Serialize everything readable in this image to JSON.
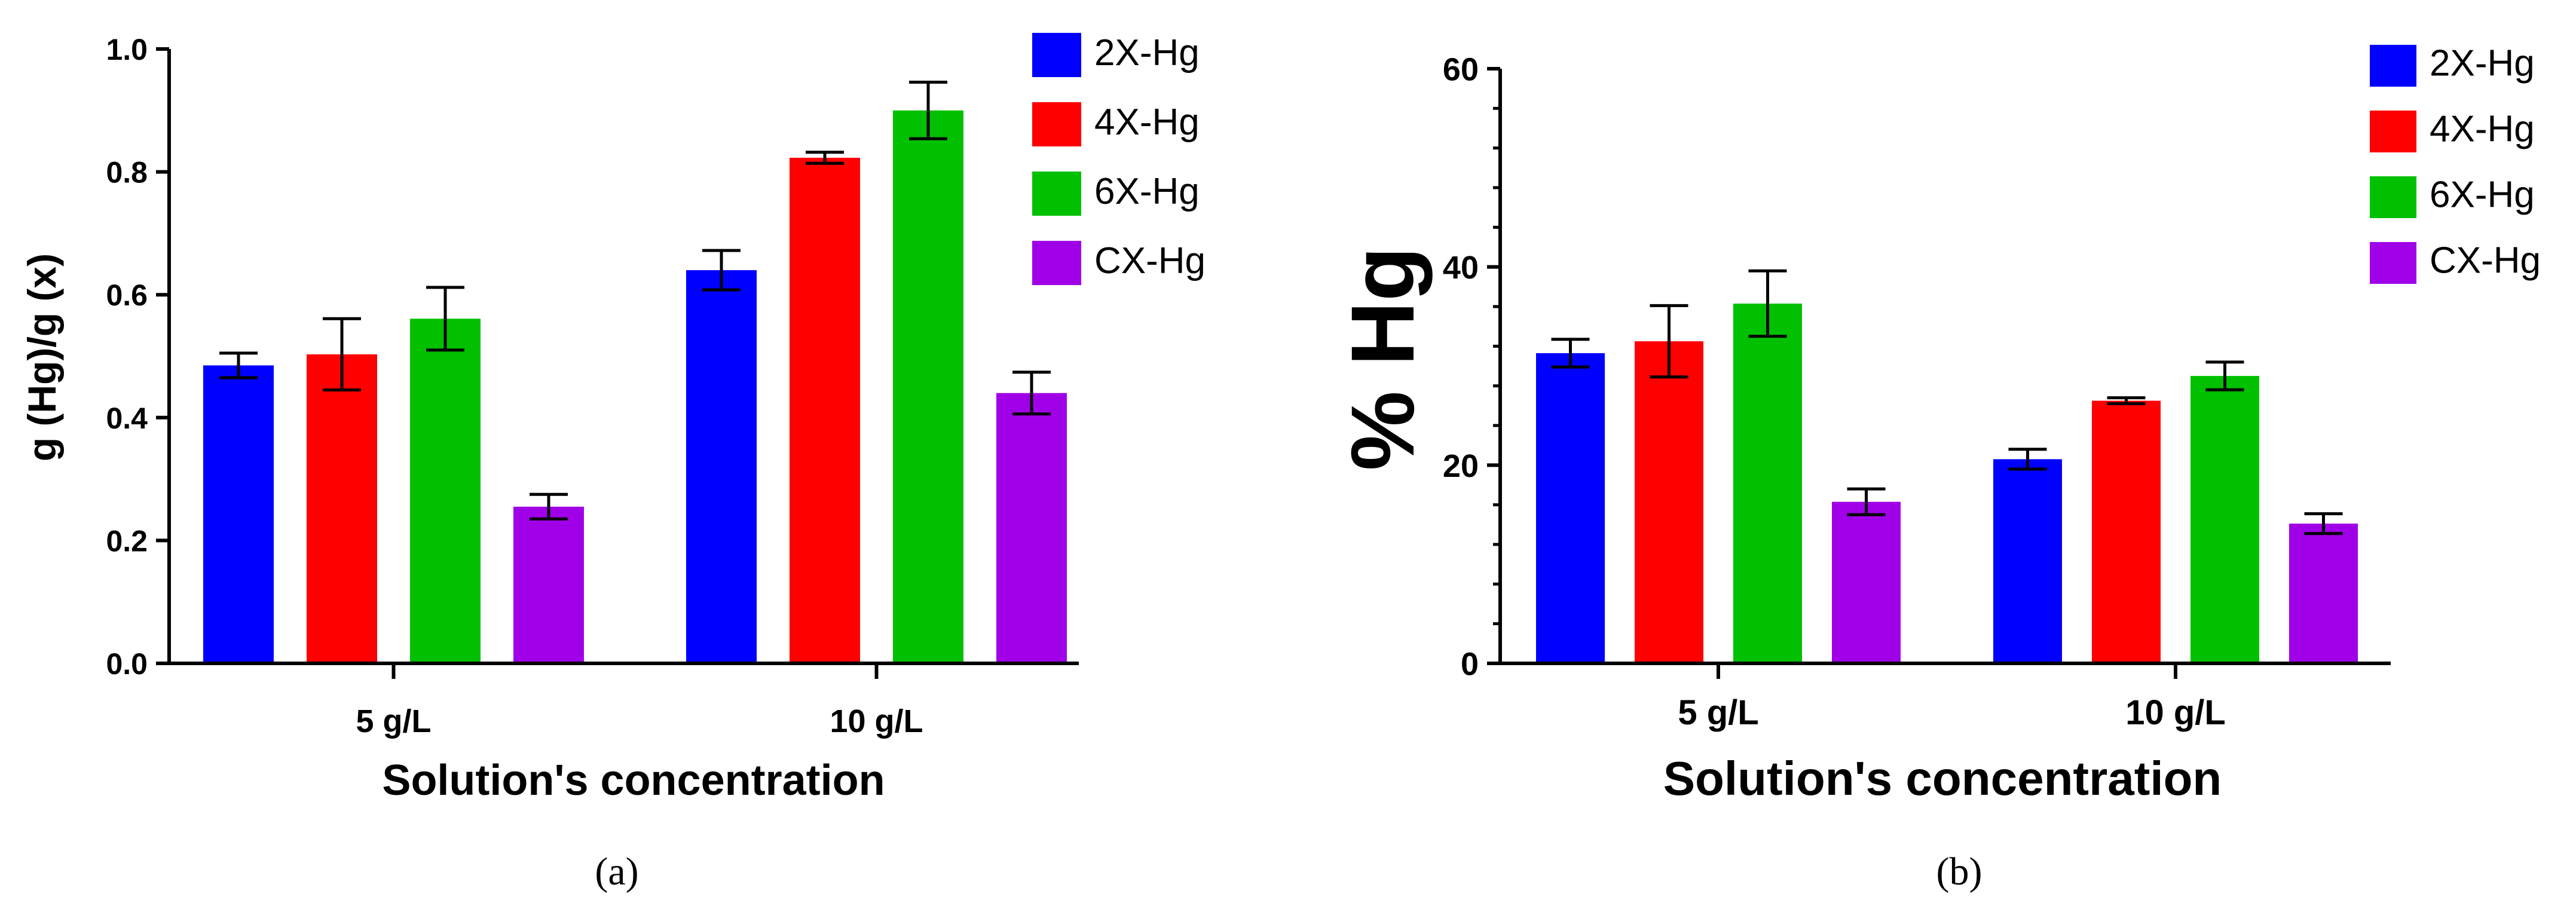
{
  "chart_data": [
    {
      "type": "bar",
      "panel_label": "(a)",
      "title": "",
      "categories": [
        "5 g/L",
        "10 g/L"
      ],
      "series": [
        {
          "name": "2X-Hg",
          "color": "#0000ff",
          "values": [
            0.485,
            0.64
          ],
          "errors": [
            0.02,
            0.032
          ]
        },
        {
          "name": "4X-Hg",
          "color": "#ff0000",
          "values": [
            0.503,
            0.823
          ],
          "errors": [
            0.058,
            0.009
          ]
        },
        {
          "name": "6X-Hg",
          "color": "#00c000",
          "values": [
            0.561,
            0.9
          ],
          "errors": [
            0.051,
            0.046
          ]
        },
        {
          "name": "CX-Hg",
          "color": "#a000e8",
          "values": [
            0.255,
            0.44
          ],
          "errors": [
            0.02,
            0.034
          ]
        }
      ],
      "ylim": [
        0,
        1.0
      ],
      "yticks": [
        "0.0",
        "0.2",
        "0.4",
        "0.6",
        "0.8",
        "1.0"
      ],
      "ylabel": "g (Hg)/g (x)",
      "xlabel": "Solution's concentration",
      "legend_position": "top-right"
    },
    {
      "type": "bar",
      "panel_label": "(b)",
      "title": "",
      "categories": [
        "5 g/L",
        "10 g/L"
      ],
      "series": [
        {
          "name": "2X-Hg",
          "color": "#0000ff",
          "values": [
            31.3,
            20.6
          ],
          "errors": [
            1.4,
            1.0
          ]
        },
        {
          "name": "4X-Hg",
          "color": "#ff0000",
          "values": [
            32.5,
            26.5
          ],
          "errors": [
            3.6,
            0.3
          ]
        },
        {
          "name": "6X-Hg",
          "color": "#00c000",
          "values": [
            36.3,
            29.0
          ],
          "errors": [
            3.3,
            1.4
          ]
        },
        {
          "name": "CX-Hg",
          "color": "#a000e8",
          "values": [
            16.3,
            14.1
          ],
          "errors": [
            1.3,
            1.0
          ]
        }
      ],
      "ylim": [
        0,
        60
      ],
      "yticks": [
        "0",
        "20",
        "40",
        "60"
      ],
      "ylabel": "% Hg",
      "xlabel": "Solution's concentration",
      "legend_position": "top-right"
    }
  ]
}
